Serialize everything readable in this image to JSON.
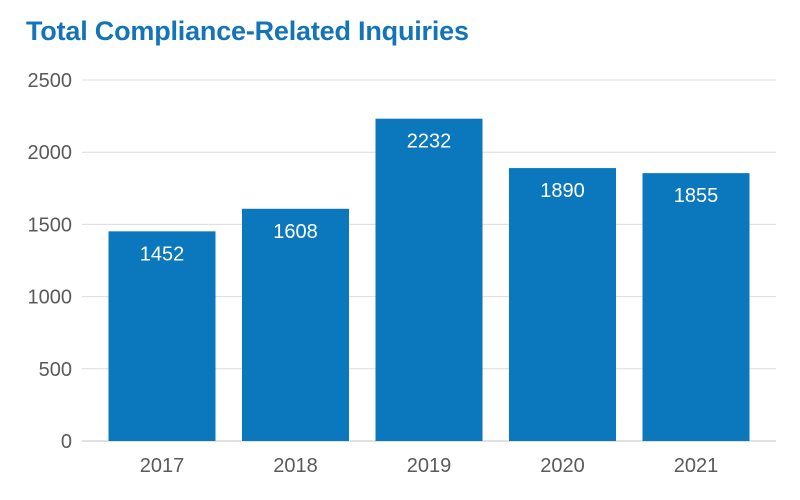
{
  "chart_data": {
    "type": "bar",
    "title": "Total Compliance-Related Inquiries",
    "categories": [
      "2017",
      "2018",
      "2019",
      "2020",
      "2021"
    ],
    "values": [
      1452,
      1608,
      2232,
      1890,
      1855
    ],
    "xlabel": "",
    "ylabel": "",
    "ylim": [
      0,
      2500
    ],
    "yticks": [
      0,
      500,
      1000,
      1500,
      2000,
      2500
    ],
    "grid": true,
    "data_labels": true,
    "bar_color": "#0b78bd",
    "title_color": "#1474b8"
  }
}
